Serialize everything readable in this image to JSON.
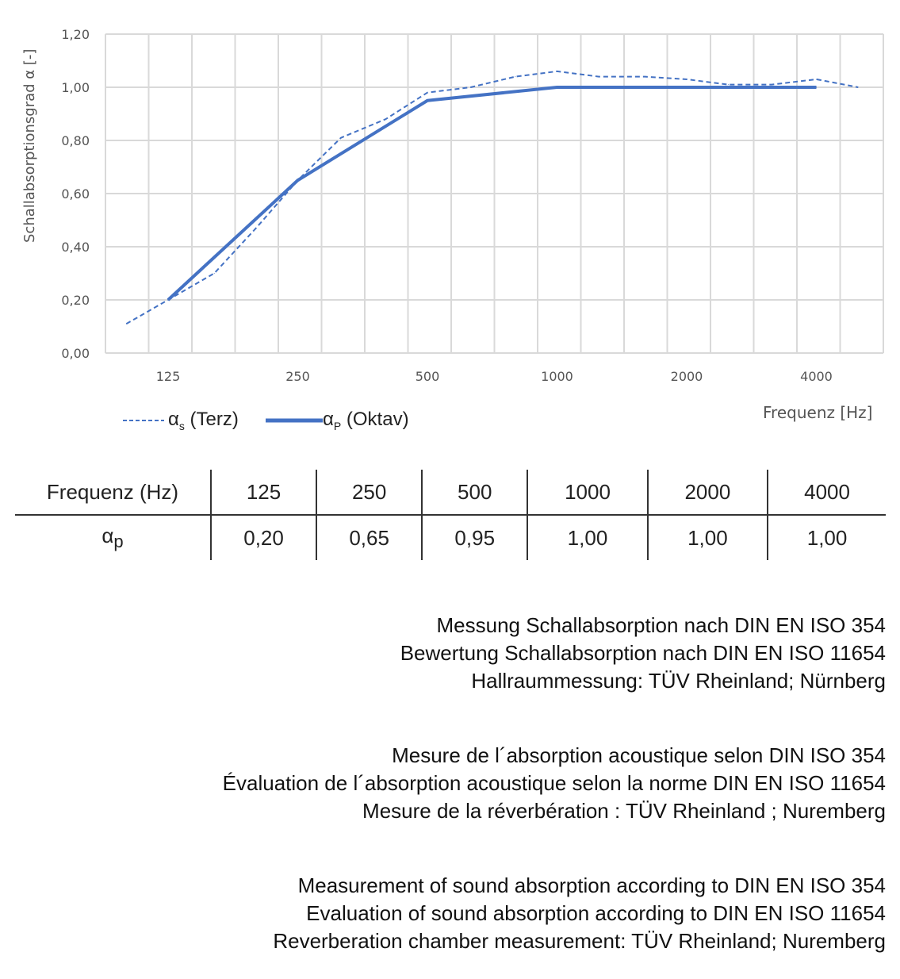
{
  "chart_data": {
    "type": "line",
    "ylabel": "Schallabsorptionsgrad α [-]",
    "xlabel": "Frequenz [Hz]",
    "x_scale": "log",
    "ylim": [
      0,
      1.2
    ],
    "y_ticks": [
      "0,00",
      "0,20",
      "0,40",
      "0,60",
      "0,80",
      "1,00",
      "1,20"
    ],
    "x_ticks": [
      "125",
      "250",
      "500",
      "1000",
      "2000",
      "4000"
    ],
    "grid": true,
    "legend_position": "bottom-left",
    "series": [
      {
        "name": "αs (Terz)",
        "label_main": "α",
        "label_sub": "s",
        "label_rest": " (Terz)",
        "style": "dashed",
        "color": "#4472C4",
        "x": [
          100,
          125,
          160,
          200,
          250,
          315,
          400,
          500,
          630,
          800,
          1000,
          1250,
          1600,
          2000,
          2500,
          3150,
          4000,
          5000
        ],
        "y": [
          0.11,
          0.2,
          0.3,
          0.47,
          0.65,
          0.81,
          0.88,
          0.98,
          1.0,
          1.04,
          1.06,
          1.04,
          1.04,
          1.03,
          1.01,
          1.01,
          1.03,
          1.0
        ]
      },
      {
        "name": "αP (Oktav)",
        "label_main": "α",
        "label_sub": "P",
        "label_rest": " (Oktav)",
        "style": "solid",
        "color": "#4472C4",
        "x": [
          125,
          250,
          500,
          1000,
          2000,
          4000
        ],
        "y": [
          0.2,
          0.65,
          0.95,
          1.0,
          1.0,
          1.0
        ]
      }
    ]
  },
  "table": {
    "header": [
      "Frequenz (Hz)",
      "125",
      "250",
      "500",
      "1000",
      "2000",
      "4000"
    ],
    "row_label_main": "α",
    "row_label_sub": "p",
    "values": [
      "0,20",
      "0,65",
      "0,95",
      "1,00",
      "1,00",
      "1,00"
    ]
  },
  "notes": [
    [
      "Messung Schallabsorption nach DIN EN ISO 354",
      "Bewertung Schallabsorption nach DIN EN ISO 11654",
      "Hallraummessung: TÜV Rheinland; Nürnberg"
    ],
    [
      "Mesure de l´absorption acoustique selon DIN ISO 354",
      "Évaluation de l´absorption acoustique selon la norme DIN EN ISO 11654",
      "Mesure de la réverbération : TÜV Rheinland ; Nuremberg"
    ],
    [
      "Measurement of sound absorption according to DIN EN ISO 354",
      "Evaluation of sound absorption according to DIN EN ISO 11654",
      "Reverberation chamber measurement: TÜV Rheinland; Nuremberg"
    ]
  ]
}
